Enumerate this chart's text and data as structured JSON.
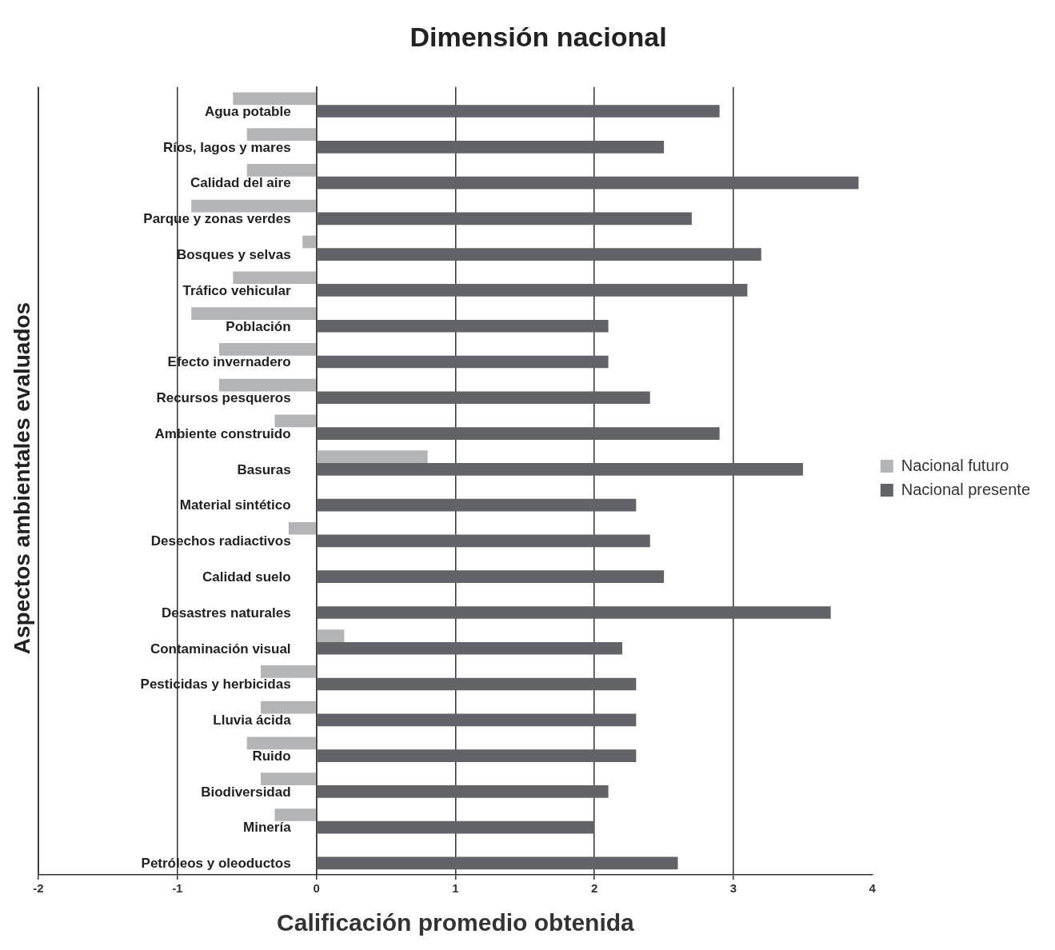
{
  "chart_data": {
    "type": "bar",
    "orientation": "horizontal",
    "title": "Dimensión nacional",
    "xlabel": "Calificación promedio obtenida",
    "ylabel": "Aspectos ambientales evaluados",
    "categories": [
      "Agua potable",
      "Ríos, lagos y mares",
      "Calidad del aire",
      "Parque y zonas verdes",
      "Bosques y selvas",
      "Tráfico vehicular",
      "Población",
      "Efecto invernadero",
      "Recursos pesqueros",
      "Ambiente construido",
      "Basuras",
      "Material sintético",
      "Desechos radiactivos",
      "Calidad suelo",
      "Desastres naturales",
      "Contaminación visual",
      "Pesticidas y herbicidas",
      "Lluvia ácida",
      "Ruido",
      "Biodiversidad",
      "Minería",
      "Petróleos y oleoductos"
    ],
    "series": [
      {
        "name": "Nacional futuro",
        "color": "#b3b4b6",
        "values": [
          -0.6,
          -0.5,
          -0.5,
          -0.9,
          -0.1,
          -0.6,
          -0.9,
          -0.7,
          -0.7,
          -0.3,
          0.8,
          null,
          -0.2,
          null,
          null,
          0.2,
          -0.4,
          -0.4,
          -0.5,
          -0.4,
          -0.3,
          null
        ]
      },
      {
        "name": "Nacional presente",
        "color": "#626366",
        "values": [
          2.9,
          2.5,
          3.9,
          2.7,
          3.2,
          3.1,
          2.1,
          2.1,
          2.4,
          2.9,
          3.5,
          2.3,
          2.4,
          2.5,
          3.7,
          2.2,
          2.3,
          2.3,
          2.3,
          2.1,
          2.0,
          2.6
        ]
      }
    ],
    "xlim": [
      -2,
      4
    ],
    "xticks": [
      -2,
      -1,
      0,
      1,
      2,
      3,
      4
    ],
    "grid": "x",
    "legend": "right"
  }
}
